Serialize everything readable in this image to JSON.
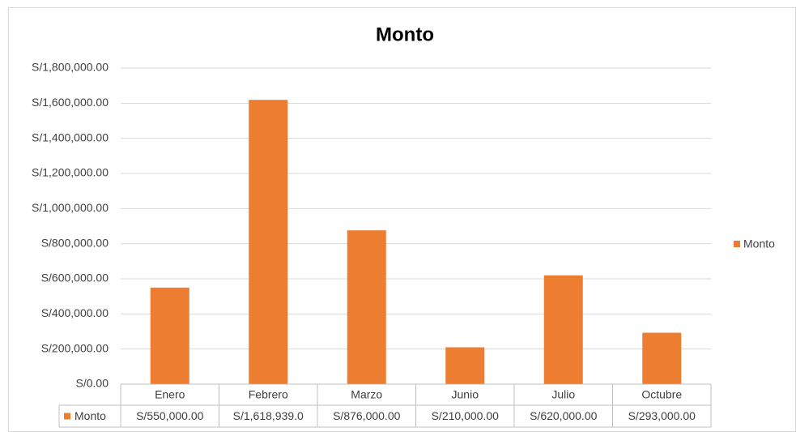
{
  "chart_data": {
    "type": "bar",
    "title": "Monto",
    "categories": [
      "Enero",
      "Febrero",
      "Marzo",
      "Junio",
      "Julio",
      "Octubre"
    ],
    "series": [
      {
        "name": "Monto",
        "color": "#ed7d31",
        "values": [
          550000,
          1618939,
          876000,
          210000,
          620000,
          293000
        ],
        "value_labels": [
          "S/550,000.00",
          "S/1,618,939.0",
          "S/876,000.00",
          "S/210,000.00",
          "S/620,000.00",
          "S/293,000.00"
        ]
      }
    ],
    "ylim": [
      0,
      1800000
    ],
    "yticks": [
      {
        "value": 0,
        "label": "S/0.00"
      },
      {
        "value": 200000,
        "label": "S/200,000.00"
      },
      {
        "value": 400000,
        "label": "S/400,000.00"
      },
      {
        "value": 600000,
        "label": "S/600,000.00"
      },
      {
        "value": 800000,
        "label": "S/800,000.00"
      },
      {
        "value": 1000000,
        "label": "S/1,000,000.00"
      },
      {
        "value": 1200000,
        "label": "S/1,200,000.00"
      },
      {
        "value": 1400000,
        "label": "S/1,400,000.00"
      },
      {
        "value": 1600000,
        "label": "S/1,600,000.00"
      },
      {
        "value": 1800000,
        "label": "S/1,800,000.00"
      }
    ],
    "grid": true,
    "legend": "right",
    "data_table": true
  }
}
